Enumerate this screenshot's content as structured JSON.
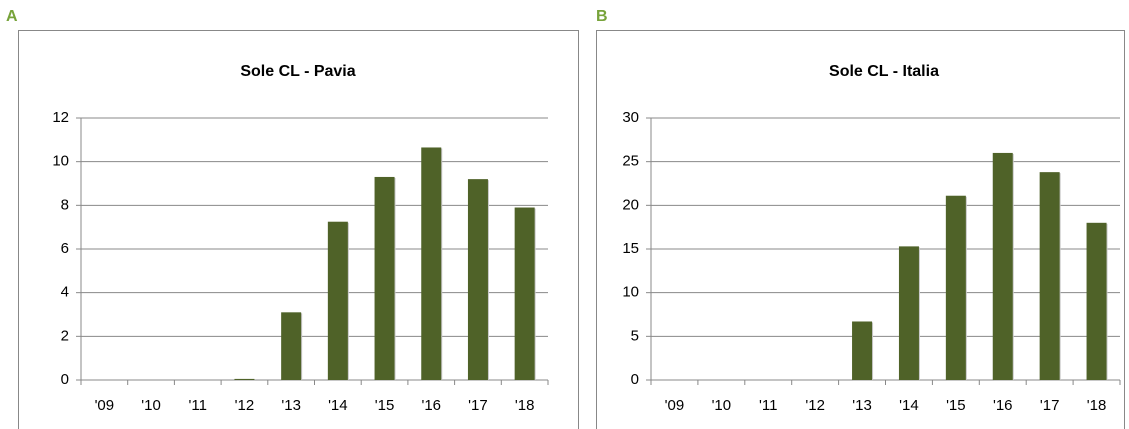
{
  "chart_data": [
    {
      "type": "bar",
      "panel_label": "A",
      "title": "Sole CL - Pavia",
      "categories": [
        "'09",
        "'10",
        "'11",
        "'12",
        "'13",
        "'14",
        "'15",
        "'16",
        "'17",
        "'18"
      ],
      "values": [
        0,
        0,
        0,
        0.05,
        3.1,
        7.25,
        9.3,
        10.65,
        9.2,
        7.9
      ],
      "color": "#4f6228",
      "ylim": [
        0,
        12
      ],
      "yticks": [
        0,
        2,
        4,
        6,
        8,
        10,
        12
      ],
      "grid": true
    },
    {
      "type": "bar",
      "panel_label": "B",
      "title": "Sole CL - Italia",
      "categories": [
        "'09",
        "'10",
        "'11",
        "'12",
        "'13",
        "'14",
        "'15",
        "'16",
        "'17",
        "'18"
      ],
      "values": [
        0,
        0,
        0,
        0,
        6.7,
        15.3,
        21.1,
        26.0,
        23.8,
        18.0
      ],
      "color": "#4f6228",
      "ylim": [
        0,
        30
      ],
      "yticks": [
        0,
        5,
        10,
        15,
        20,
        25,
        30
      ],
      "grid": true
    }
  ]
}
